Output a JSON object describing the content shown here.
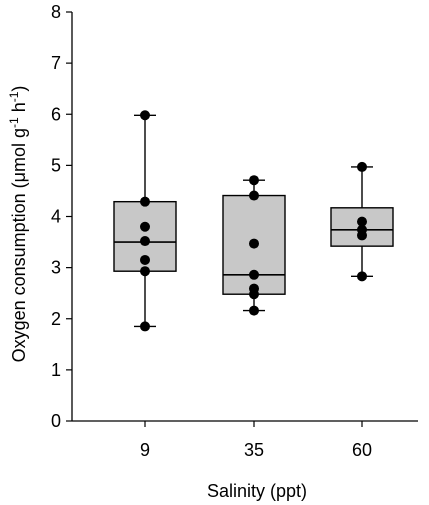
{
  "chart_data": {
    "type": "box",
    "xlabel": "Salinity (ppt)",
    "ylabel_parts": [
      "Oxygen consumption (",
      "μ",
      "mol g",
      "-1",
      " h",
      "-1",
      ")"
    ],
    "ylim": [
      0,
      8
    ],
    "yticks": [
      0,
      1,
      2,
      3,
      4,
      5,
      6,
      7,
      8
    ],
    "categories": [
      "9",
      "35",
      "60"
    ],
    "boxes": [
      {
        "category": "9",
        "whisker_low": 1.85,
        "q1": 2.93,
        "median": 3.5,
        "q3": 4.29,
        "whisker_high": 5.98,
        "points": [
          5.98,
          4.29,
          3.8,
          3.52,
          3.15,
          2.93,
          1.85
        ]
      },
      {
        "category": "35",
        "whisker_low": 2.16,
        "q1": 2.48,
        "median": 2.86,
        "q3": 4.41,
        "whisker_high": 4.71,
        "points": [
          4.71,
          4.41,
          3.47,
          2.86,
          2.59,
          2.48,
          2.16
        ]
      },
      {
        "category": "60",
        "whisker_low": 2.83,
        "q1": 3.42,
        "median": 3.74,
        "q3": 4.17,
        "whisker_high": 4.97,
        "points": [
          4.97,
          3.9,
          3.74,
          3.63,
          2.83
        ]
      }
    ],
    "colors": {
      "box_fill": "#c8c8c8",
      "line": "#000000",
      "point": "#000000"
    },
    "grid": false
  }
}
